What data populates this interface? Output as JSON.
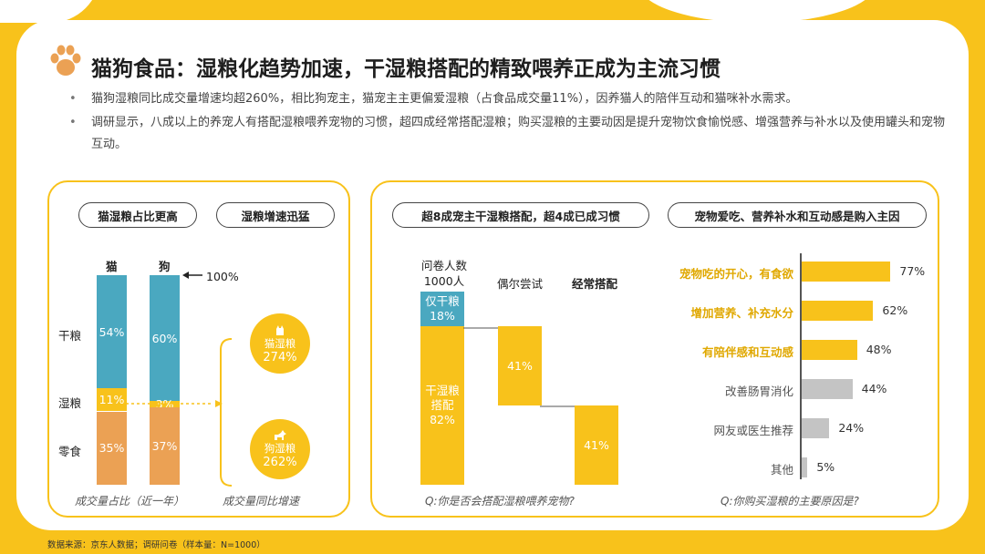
{
  "title": "猫狗食品：湿粮化趋势加速，干湿粮搭配的精致喂养正成为主流习惯",
  "bullets": [
    "猫狗湿粮同比成交量增速均超260%，相比狗宠主，猫宠主主更偏爱湿粮（占食品成交量11%），因养猫人的陪伴互动和猫咪补水需求。",
    "调研显示，八成以上的养宠人有搭配湿粮喂养宠物的习惯，超四成经常搭配湿粮；购买湿粮的主要动因是提升宠物饮食愉悦感、增强营养与补水以及使用罐头和宠物互动。"
  ],
  "left_panel": {
    "pill1": "猫湿粮占比更高",
    "pill2": "湿粮增速迅猛",
    "col_labels": [
      "猫",
      "狗"
    ],
    "row_labels": [
      "干粮",
      "湿粮",
      "零食"
    ],
    "hundred_label": "100%",
    "caption_left": "成交量占比（近一年）",
    "caption_right": "成交量同比增速",
    "growth": [
      {
        "name": "猫湿粮",
        "value": "274%"
      },
      {
        "name": "狗湿粮",
        "value": "262%"
      }
    ]
  },
  "middle_panel": {
    "pill": "超8成宠主干湿粮搭配，超4成已成习惯",
    "respondents_line1": "问卷人数",
    "respondents_line2": "1000人",
    "dry_only_label": "仅干粮",
    "dry_only_value": "18%",
    "mix_label1": "干湿粮",
    "mix_label2": "搭配",
    "mix_value": "82%",
    "occasional_label": "偶尔尝试",
    "occasional_value": "41%",
    "regular_label": "经常搭配",
    "regular_value": "41%",
    "caption": "Q:你是否会搭配湿粮喂养宠物?"
  },
  "right_panel": {
    "pill": "宠物爱吃、营养补水和互动感是购入主因",
    "caption": "Q:你购买湿粮的主要原因是?"
  },
  "footer": "数据来源：京东人数据；调研问卷（样本量：N=1000）",
  "colors": {
    "yellow": "#F8C21B",
    "blue": "#4AA8C0",
    "orange": "#EBA154",
    "gray": "#C4C4C4",
    "bg": "#F8C21B"
  },
  "chart_data": [
    {
      "type": "bar",
      "title": "成交量占比（近一年）",
      "categories": [
        "猫",
        "狗"
      ],
      "stacked": true,
      "series": [
        {
          "name": "干粮",
          "values": [
            54,
            60
          ]
        },
        {
          "name": "湿粮",
          "values": [
            11,
            3
          ]
        },
        {
          "name": "零食",
          "values": [
            35,
            37
          ]
        }
      ],
      "unit": "%"
    },
    {
      "type": "bar",
      "title": "成交量同比增速",
      "categories": [
        "猫湿粮",
        "狗湿粮"
      ],
      "values": [
        274,
        262
      ],
      "unit": "%"
    },
    {
      "type": "bar",
      "title": "Q:你是否会搭配湿粮喂养宠物?",
      "categories": [
        "仅干粮",
        "干湿粮搭配",
        "偶尔尝试",
        "经常搭配"
      ],
      "values": [
        18,
        82,
        41,
        41
      ],
      "unit": "%"
    },
    {
      "type": "bar",
      "title": "Q:你购买湿粮的主要原因是?",
      "categories": [
        "宠物吃的开心，有食欲",
        "增加营养、补充水分",
        "有陪伴感和互动感",
        "改善肠胃消化",
        "网友或医生推荐",
        "其他"
      ],
      "values": [
        77,
        62,
        48,
        44,
        24,
        5
      ],
      "highlight": [
        true,
        true,
        true,
        false,
        false,
        false
      ],
      "unit": "%"
    }
  ]
}
